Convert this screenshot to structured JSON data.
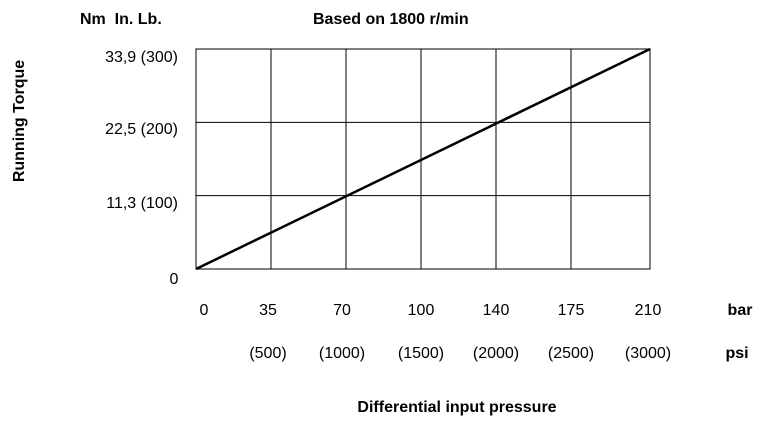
{
  "chart_data": {
    "type": "line",
    "title": "Based on 1800 r/min",
    "ylabel": "Running Torque",
    "xlabel": "Differential input pressure",
    "y_units": "Nm  In. Lb.",
    "x_unit_bar": "bar",
    "x_unit_psi": "psi",
    "xlim": [
      0,
      210
    ],
    "ylim": [
      0,
      300
    ],
    "grid": true,
    "x_ticks": [
      0,
      35,
      70,
      100,
      140,
      175,
      210
    ],
    "x_tick_labels": [
      "0",
      "35",
      "70",
      "100",
      "140",
      "175",
      "210"
    ],
    "psi_tick_labels": [
      "(500)",
      "(1000)",
      "(1500)",
      "(2000)",
      "(2500)",
      "(3000)"
    ],
    "y_ticks": [
      0,
      100,
      200,
      300
    ],
    "y_tick_labels": [
      "0",
      "11,3 (100)",
      "22,5 (200)",
      "33,9 (300)"
    ],
    "series": [
      {
        "x": [
          0,
          210
        ],
        "y": [
          0,
          300
        ]
      }
    ]
  }
}
